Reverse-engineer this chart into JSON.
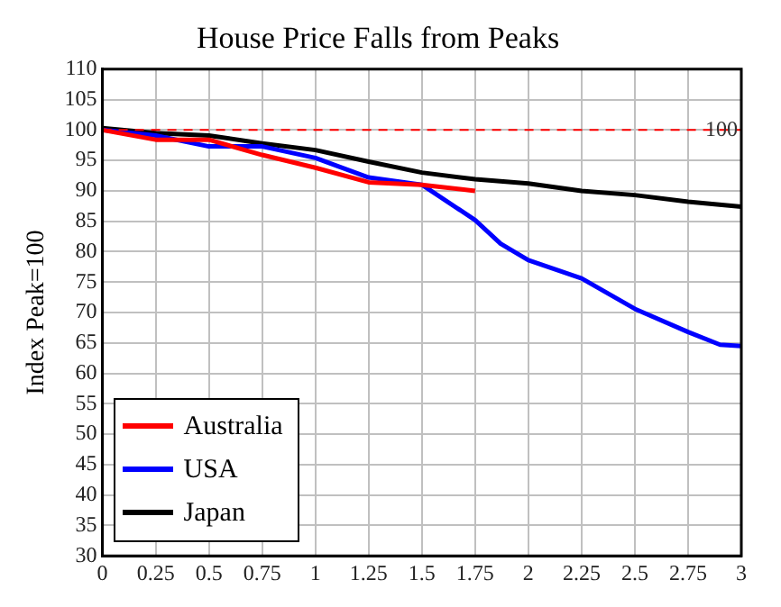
{
  "chart_data": {
    "type": "line",
    "title": "House Price Falls from Peaks",
    "ylabel": "Index Peak=100",
    "xlim": [
      0,
      3
    ],
    "xticks": [
      0,
      0.25,
      0.5,
      0.75,
      1,
      1.25,
      1.5,
      1.75,
      2,
      2.25,
      2.5,
      2.75,
      3
    ],
    "ylim": [
      30,
      110
    ],
    "yticks": [
      30,
      35,
      40,
      45,
      50,
      55,
      60,
      65,
      70,
      75,
      80,
      85,
      90,
      95,
      100,
      105,
      110
    ],
    "series": [
      {
        "name": "Australia",
        "color": "#ff0000",
        "x": [
          0,
          0.25,
          0.5,
          0.75,
          1,
          1.25,
          1.5,
          1.75
        ],
        "values": [
          100,
          98.4,
          98.4,
          95.9,
          93.8,
          91.4,
          91,
          90
        ]
      },
      {
        "name": "USA",
        "color": "#0000ff",
        "x": [
          0,
          0.25,
          0.5,
          0.75,
          1,
          1.25,
          1.5,
          1.75,
          1.87,
          2,
          2.25,
          2.5,
          2.75,
          2.9,
          3
        ],
        "values": [
          100,
          99.1,
          97.3,
          97.3,
          95.4,
          92.2,
          91,
          85.2,
          81.3,
          78.6,
          75.6,
          70.6,
          66.8,
          64.7,
          64.5
        ]
      },
      {
        "name": "Japan",
        "color": "#000000",
        "x": [
          0,
          0.25,
          0.5,
          0.75,
          1,
          1.25,
          1.5,
          1.75,
          2,
          2.25,
          2.5,
          2.75,
          3
        ],
        "values": [
          100.3,
          99.5,
          99.1,
          97.8,
          96.7,
          94.8,
          93,
          91.9,
          91.2,
          90,
          89.3,
          88.2,
          87.4
        ]
      }
    ],
    "ref_lines": [
      {
        "axis": "y",
        "value": 100,
        "label": "100",
        "color": "#ff0000",
        "line_style": "dashed"
      }
    ],
    "grid": true,
    "legend": "bottom left",
    "marker": "none",
    "line_style": "solid"
  }
}
